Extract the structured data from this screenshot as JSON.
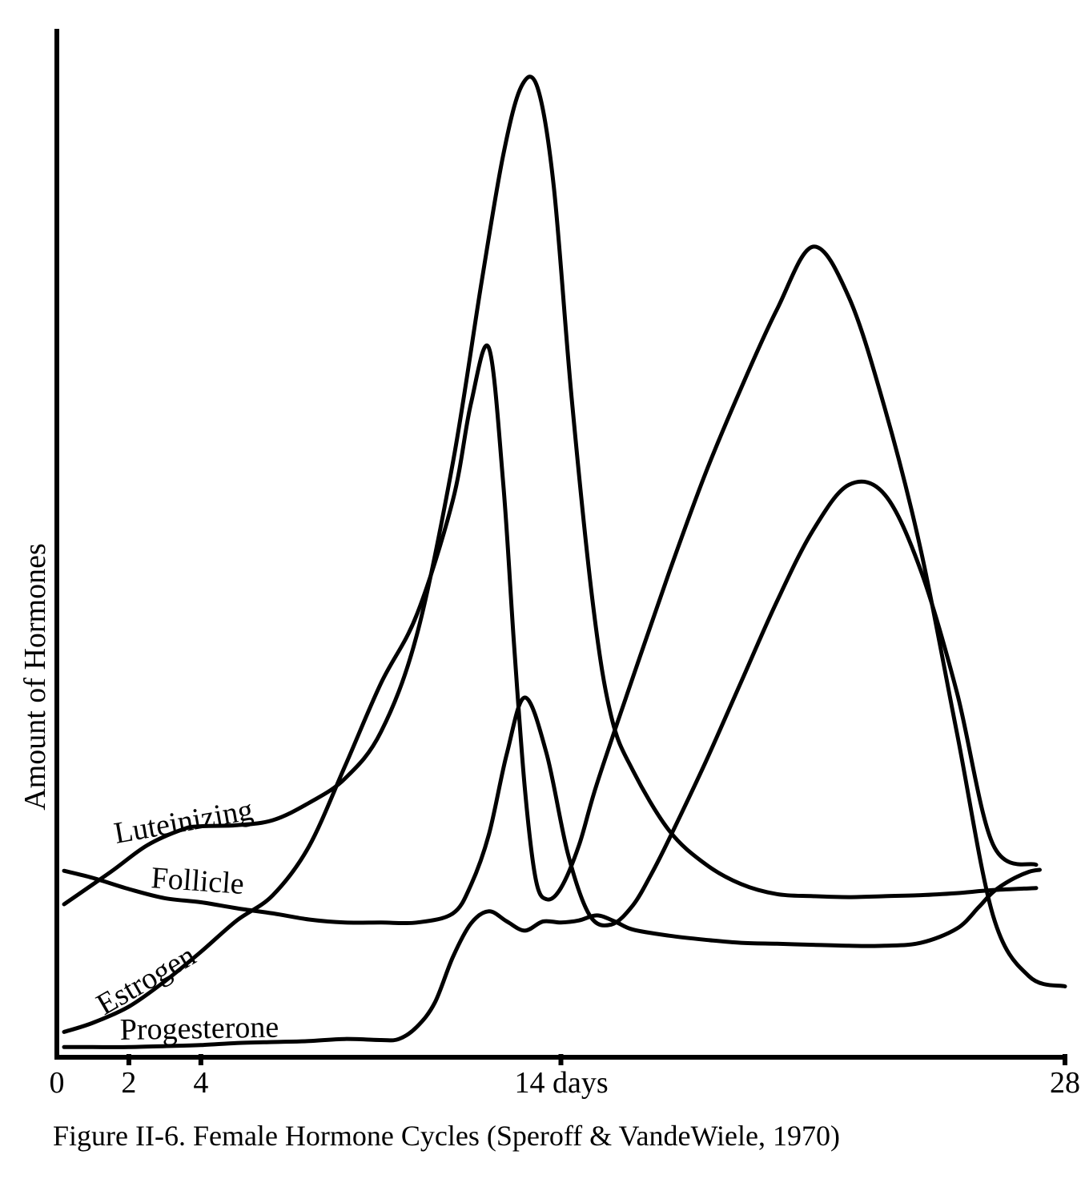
{
  "chart_data": {
    "type": "line",
    "title": "",
    "caption": "Figure II-6. Female Hormone Cycles (Speroff & VandeWiele, 1970)",
    "ylabel": "Amount of Hormones",
    "xlabel": "",
    "xlim": [
      0,
      28
    ],
    "ylim": [
      0,
      100
    ],
    "grid": false,
    "legend": "none",
    "x_ticks": [
      {
        "value": 0,
        "label": "0"
      },
      {
        "value": 2,
        "label": "2"
      },
      {
        "value": 4,
        "label": "4"
      },
      {
        "value": 14,
        "label": "14 days"
      },
      {
        "value": 28,
        "label": "28"
      }
    ],
    "series": [
      {
        "name": "Luteinizing",
        "x": [
          0.2,
          1.5,
          2.5,
          3.5,
          4.0,
          5.0,
          6.0,
          7.0,
          8.0,
          9.0,
          10.0,
          11.0,
          11.8,
          12.4,
          12.9,
          13.35,
          13.8,
          14.3,
          14.9,
          15.4,
          16.0,
          17.0,
          18.0,
          19.0,
          20.0,
          21.0,
          22.0,
          23.0,
          24.0,
          25.0,
          26.0,
          27.2
        ],
        "y": [
          15.1,
          18.3,
          20.9,
          22.5,
          22.8,
          22.9,
          23.4,
          25.1,
          27.5,
          32.1,
          41.7,
          58.7,
          76.6,
          89.1,
          95.8,
          95.7,
          86.0,
          65.0,
          44.4,
          33.6,
          28.3,
          22.4,
          19.1,
          17.1,
          16.1,
          15.9,
          15.8,
          15.9,
          16.0,
          16.2,
          16.5,
          16.7
        ]
      },
      {
        "name": "Follicle",
        "x": [
          0.2,
          1.0,
          2.0,
          3.0,
          4.0,
          5.0,
          6.0,
          7.0,
          8.0,
          9.0,
          10.0,
          11.0,
          11.5,
          12.0,
          12.5,
          13.0,
          13.6,
          14.2,
          14.8,
          15.4,
          16.0,
          16.5,
          17.0,
          18.0,
          19.0,
          20.0,
          21.0,
          22.0,
          23.0,
          24.0,
          25.0,
          26.0,
          27.2
        ],
        "y": [
          18.4,
          17.7,
          16.6,
          15.7,
          15.3,
          14.7,
          14.2,
          13.6,
          13.3,
          13.3,
          13.3,
          14.2,
          17.0,
          22.0,
          30.0,
          35.5,
          30.0,
          20.0,
          14.0,
          13.1,
          15.0,
          18.0,
          21.5,
          29.0,
          37.0,
          45.0,
          52.0,
          56.5,
          55.5,
          48.0,
          36.0,
          21.0,
          19.0
        ]
      },
      {
        "name": "Estrogen",
        "x": [
          0.2,
          1.0,
          2.0,
          3.0,
          4.0,
          5.0,
          6.0,
          7.0,
          8.0,
          9.0,
          10.0,
          11.0,
          11.5,
          12.0,
          12.4,
          12.7,
          13.0,
          13.3,
          13.6,
          14.0,
          14.5,
          15.0,
          16.0,
          17.0,
          18.0,
          19.0,
          20.0,
          21.0,
          22.0,
          23.0,
          24.0,
          25.0,
          26.0,
          27.0,
          28.0
        ],
        "y": [
          2.5,
          3.4,
          5.0,
          7.5,
          10.4,
          13.5,
          16.0,
          20.8,
          28.7,
          36.9,
          43.7,
          55.0,
          64.5,
          70.0,
          56.5,
          40.7,
          26.5,
          17.6,
          15.6,
          16.7,
          20.9,
          27.0,
          37.5,
          47.8,
          57.5,
          66.0,
          73.8,
          80.0,
          75.0,
          64.0,
          50.0,
          32.0,
          14.0,
          8.0,
          7.0
        ]
      },
      {
        "name": "Progesterone",
        "x": [
          0.2,
          1.0,
          2.0,
          3.0,
          4.0,
          5.0,
          6.0,
          7.0,
          8.0,
          9.0,
          9.5,
          10.0,
          10.5,
          11.0,
          11.5,
          12.0,
          12.5,
          13.0,
          13.5,
          14.0,
          14.5,
          15.0,
          15.5,
          16.0,
          17.0,
          18.0,
          19.0,
          20.0,
          21.0,
          22.0,
          23.0,
          24.0,
          25.0,
          25.6,
          26.0,
          26.5,
          27.0,
          27.3
        ],
        "y": [
          1.0,
          1.0,
          1.0,
          1.1,
          1.2,
          1.4,
          1.5,
          1.6,
          1.8,
          1.7,
          1.8,
          3.0,
          5.4,
          9.9,
          13.2,
          14.4,
          13.4,
          12.5,
          13.4,
          13.3,
          13.5,
          14.0,
          13.4,
          12.6,
          12.0,
          11.6,
          11.3,
          11.2,
          11.1,
          11.0,
          11.0,
          11.3,
          12.7,
          14.8,
          16.3,
          17.5,
          18.3,
          18.5
        ]
      }
    ],
    "series_labels": [
      "Luteinizing",
      "Follicle",
      "Estrogen",
      "Progesterone"
    ]
  }
}
